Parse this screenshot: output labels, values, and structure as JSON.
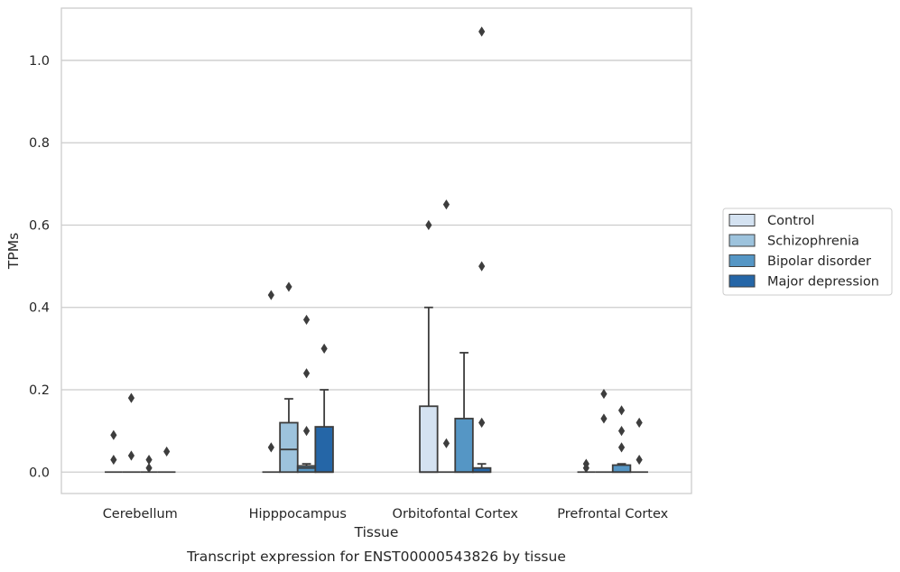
{
  "chart_data": {
    "type": "box",
    "ylabel": "TPMs",
    "xlabel": "Tissue",
    "caption": "Transcript expression for ENST00000543826 by tissue",
    "ylim": [
      -0.052,
      1.127
    ],
    "yticks": [
      0.0,
      0.2,
      0.4,
      0.6,
      0.8,
      1.0
    ],
    "ytick_labels": [
      "0.0",
      "0.2",
      "0.4",
      "0.6",
      "0.8",
      "1.0"
    ],
    "grid": "horizontal",
    "legend_position": "right",
    "categories": [
      "Cerebellum",
      "Hipppocampus",
      "Orbitofontal Cortex",
      "Prefrontal Cortex"
    ],
    "series": [
      {
        "name": "Control",
        "color": "#d4e2f1",
        "boxes": [
          {
            "q1": 0,
            "median": 0,
            "q3": 0,
            "whisker_low": 0,
            "whisker_high": 0,
            "outliers": [
              0.09,
              0.03
            ]
          },
          {
            "q1": 0,
            "median": 0,
            "q3": 0,
            "whisker_low": 0,
            "whisker_high": 0,
            "outliers": [
              0.43,
              0.06
            ]
          },
          {
            "q1": 0,
            "median": 0,
            "q3": 0.16,
            "whisker_low": 0,
            "whisker_high": 0.4,
            "outliers": [
              0.6
            ]
          },
          {
            "q1": 0,
            "median": 0,
            "q3": 0,
            "whisker_low": 0,
            "whisker_high": 0,
            "outliers": [
              0.02,
              0.01
            ]
          }
        ]
      },
      {
        "name": "Schizophrenia",
        "color": "#9dc3dd",
        "boxes": [
          {
            "q1": 0,
            "median": 0,
            "q3": 0,
            "whisker_low": 0,
            "whisker_high": 0,
            "outliers": [
              0.18,
              0.04
            ]
          },
          {
            "q1": 0,
            "median": 0.055,
            "q3": 0.12,
            "whisker_low": 0,
            "whisker_high": 0.178,
            "outliers": [
              0.45
            ]
          },
          {
            "q1": 0,
            "median": 0,
            "q3": 0,
            "whisker_low": 0,
            "whisker_high": 0,
            "outliers": [
              0.65,
              0.07
            ]
          },
          {
            "q1": 0,
            "median": 0,
            "q3": 0,
            "whisker_low": 0,
            "whisker_high": 0,
            "outliers": [
              0.19,
              0.13
            ]
          }
        ]
      },
      {
        "name": "Bipolar disorder",
        "color": "#5596c5",
        "boxes": [
          {
            "q1": 0,
            "median": 0,
            "q3": 0,
            "whisker_low": 0,
            "whisker_high": 0,
            "outliers": [
              0.03,
              0.01
            ]
          },
          {
            "q1": 0,
            "median": 0.01,
            "q3": 0.015,
            "whisker_low": 0,
            "whisker_high": 0.02,
            "outliers": [
              0.37,
              0.24,
              0.1
            ]
          },
          {
            "q1": 0,
            "median": 0,
            "q3": 0.13,
            "whisker_low": 0,
            "whisker_high": 0.29,
            "outliers": []
          },
          {
            "q1": 0,
            "median": 0,
            "q3": 0.017,
            "whisker_low": 0,
            "whisker_high": 0.02,
            "outliers": [
              0.15,
              0.1,
              0.06
            ]
          }
        ]
      },
      {
        "name": "Major depression",
        "color": "#2566a7",
        "boxes": [
          {
            "q1": 0,
            "median": 0,
            "q3": 0,
            "whisker_low": 0,
            "whisker_high": 0,
            "outliers": [
              0.05
            ]
          },
          {
            "q1": 0,
            "median": 0,
            "q3": 0.11,
            "whisker_low": 0,
            "whisker_high": 0.2,
            "outliers": [
              0.3
            ]
          },
          {
            "q1": 0,
            "median": 0,
            "q3": 0.01,
            "whisker_low": 0,
            "whisker_high": 0.02,
            "outliers": [
              1.07,
              0.5,
              0.12
            ]
          },
          {
            "q1": 0,
            "median": 0,
            "q3": 0,
            "whisker_low": 0,
            "whisker_high": 0,
            "outliers": [
              0.12,
              0.03
            ]
          }
        ]
      }
    ]
  }
}
